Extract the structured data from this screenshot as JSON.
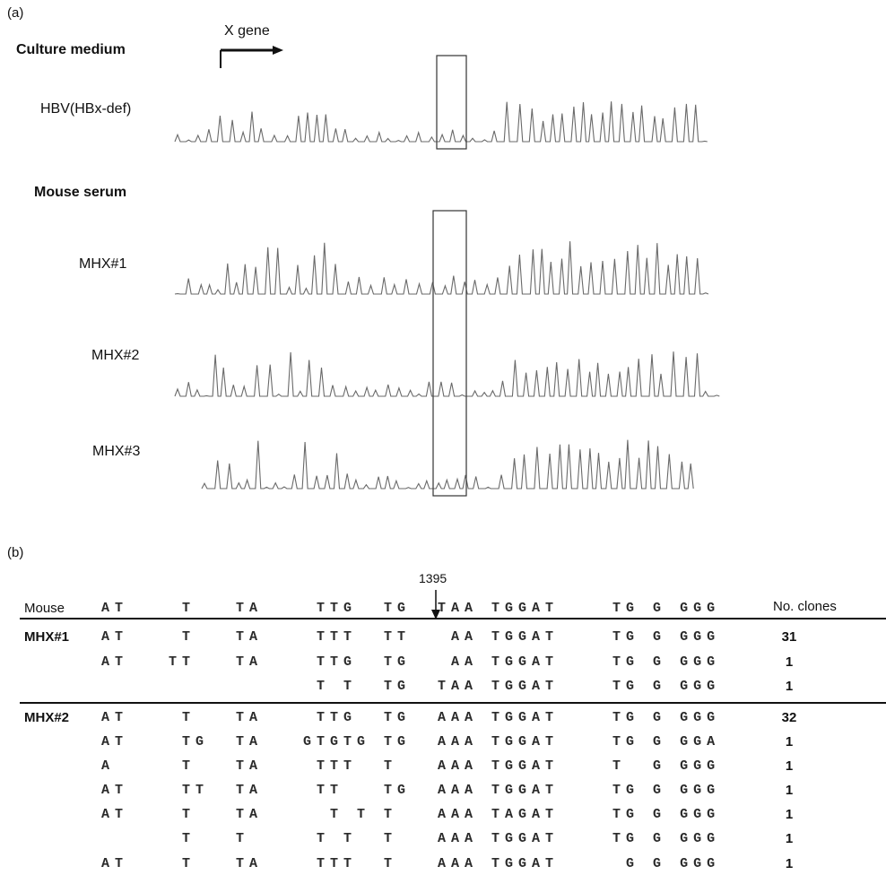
{
  "panel_a": {
    "label": "(a)",
    "x_gene": "X gene",
    "sections": [
      {
        "title": "Culture medium",
        "samples": [
          "HBV(HBx-def)"
        ]
      },
      {
        "title": "Mouse serum",
        "samples": [
          "MHX#1",
          "MHX#2",
          "MHX#3"
        ]
      }
    ]
  },
  "panel_b": {
    "label": "(b)",
    "position": "1395",
    "header": {
      "mouse": "Mouse",
      "sequence": "AT    T   TA    TTG  TG  TAA TGGAT    TG G GGG",
      "clones": "No. clones"
    },
    "rows": [
      {
        "mouse": "MHX#1",
        "sequence": "AT    T   TA    TTT  TT   AA TGGAT    TG G GGG",
        "clones": 31
      },
      {
        "sequence": "AT   TT   TA    TTG  TG   AA TGGAT    TG G GGG",
        "clones": 1
      },
      {
        "sequence": "                T T  TG  TAA TGGAT    TG G GGG",
        "clones": 1
      },
      {
        "mouse": "MHX#2",
        "sequence": "AT    T   TA    TTG  TG  AAA TGGAT    TG G GGG",
        "clones": 32
      },
      {
        "sequence": "AT    TG  TA   GTGTG TG  AAA TGGAT    TG G GGA",
        "clones": 1
      },
      {
        "sequence": "A     T   TA    TTT  T   AAA TGGAT    T  G GGG",
        "clones": 1
      },
      {
        "sequence": "AT    TT  TA    TT   TG  AAA TGGAT    TG G GGG",
        "clones": 1
      },
      {
        "sequence": "AT    T   TA     T T T   AAA TAGAT    TG G GGG",
        "clones": 1
      },
      {
        "sequence": "      T   T     T T  T   AAA TGGAT    TG G GGG",
        "clones": 1
      },
      {
        "sequence": "AT    T   TA    TTT  T   AAA TGGAT     G G GGG",
        "clones": 1
      }
    ]
  }
}
